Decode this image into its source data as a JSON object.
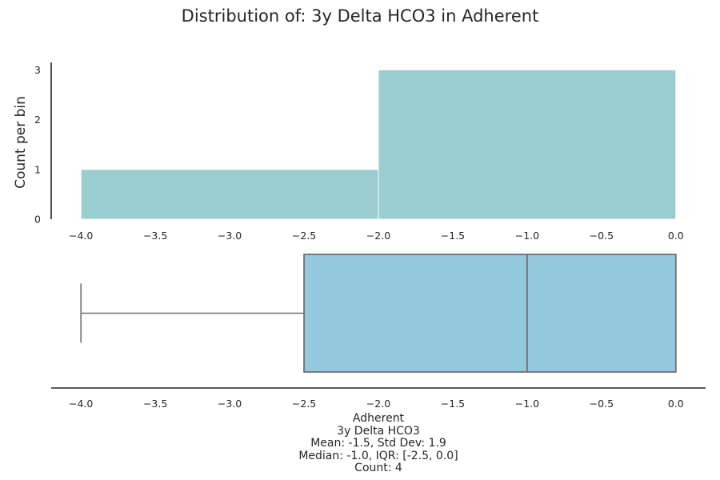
{
  "title": "Distribution of: 3y Delta HCO3 in Adherent",
  "colors": {
    "hist_fill": "#9ACDCF",
    "box_fill": "#94C8DF",
    "box_line": "#707070",
    "axis": "#262626"
  },
  "chart_data": [
    {
      "type": "histogram",
      "ylabel": "Count per bin",
      "bins": [
        {
          "x0": -4.0,
          "x1": -2.0,
          "count": 1
        },
        {
          "x0": -2.0,
          "x1": 0.0,
          "count": 3
        }
      ],
      "xlim": [
        -4.2,
        0.2
      ],
      "ylim": [
        0,
        3.15
      ],
      "xticks": [
        -4.0,
        -3.5,
        -3.0,
        -2.5,
        -2.0,
        -1.5,
        -1.0,
        -0.5,
        0.0
      ],
      "xtick_labels": [
        "−4.0",
        "−3.5",
        "−3.0",
        "−2.5",
        "−2.0",
        "−1.5",
        "−1.0",
        "−0.5",
        "0.0"
      ],
      "yticks": [
        0,
        1,
        2,
        3
      ],
      "ytick_labels": [
        "0",
        "1",
        "2",
        "3"
      ]
    },
    {
      "type": "boxplot",
      "min": -4.0,
      "q1": -2.5,
      "median": -1.0,
      "q3": 0.0,
      "max": 0.0,
      "xlim": [
        -4.2,
        0.2
      ],
      "xticks": [
        -4.0,
        -3.5,
        -3.0,
        -2.5,
        -2.0,
        -1.5,
        -1.0,
        -0.5,
        0.0
      ],
      "xtick_labels": [
        "−4.0",
        "−3.5",
        "−3.0",
        "−2.5",
        "−2.0",
        "−1.5",
        "−1.0",
        "−0.5",
        "0.0"
      ]
    }
  ],
  "stats_text": {
    "group": "Adherent",
    "variable": "3y Delta HCO3",
    "mean_std": "Mean: -1.5, Std Dev: 1.9",
    "median_iqr": "Median: -1.0, IQR: [-2.5, 0.0]",
    "count": "Count: 4"
  }
}
